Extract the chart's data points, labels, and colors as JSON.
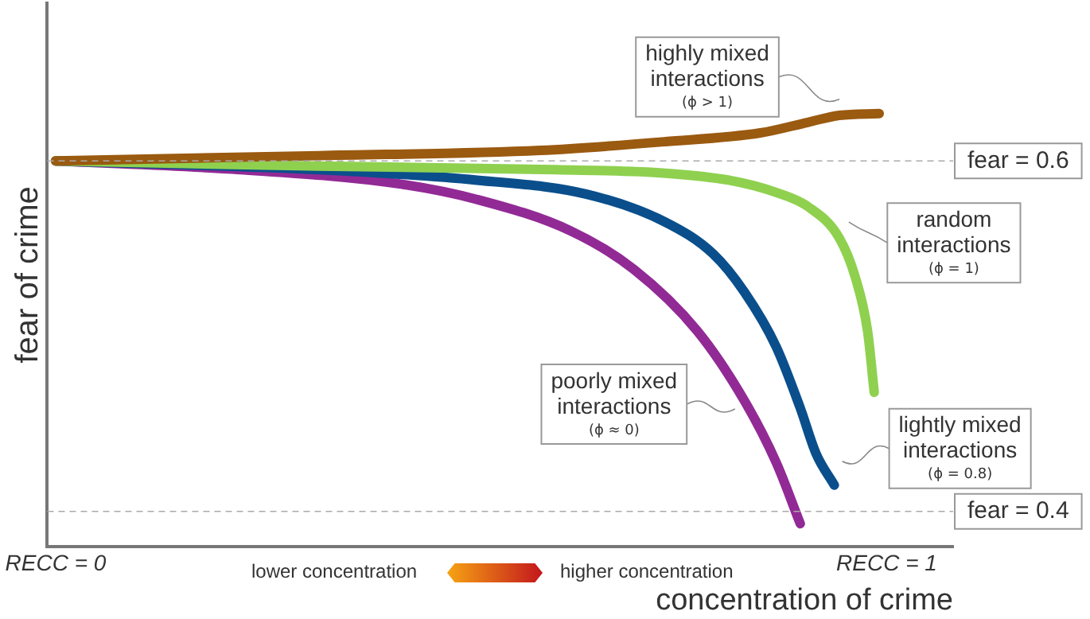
{
  "chart_data": {
    "type": "line",
    "xlabel": "concentration of crime",
    "ylabel": "fear of crime",
    "xlim": [
      -0.01,
      1.08
    ],
    "ylim": [
      0.38,
      0.69
    ],
    "xticks": [
      {
        "value": 0,
        "label": "RECC = 0"
      },
      {
        "value": 1,
        "label": "RECC = 1"
      }
    ],
    "tick_labels": "x",
    "grid": false,
    "legend": false,
    "marker": "none",
    "line_style": "solid",
    "series": [
      {
        "name": "highly mixed interactions (ϕ > 1)",
        "color": "#9a5a10",
        "x": [
          0,
          0.317,
          0.583,
          0.734,
          0.848,
          0.905,
          0.943,
          0.991
        ],
        "values": [
          0.6,
          0.603,
          0.606,
          0.611,
          0.616,
          0.622,
          0.626,
          0.627
        ]
      },
      {
        "name": "random interactions (ϕ = 1)",
        "color": "#8fd14f",
        "x": [
          0,
          0.317,
          0.602,
          0.734,
          0.81,
          0.867,
          0.905,
          0.943,
          0.962,
          0.977,
          0.985
        ],
        "values": [
          0.6,
          0.597,
          0.595,
          0.593,
          0.589,
          0.582,
          0.574,
          0.556,
          0.534,
          0.503,
          0.468
        ]
      },
      {
        "name": "lightly mixed interactions (ϕ = 0.8)",
        "color": "#0a4f8c",
        "x": [
          0,
          0.317,
          0.507,
          0.639,
          0.734,
          0.791,
          0.829,
          0.867,
          0.896,
          0.915,
          0.937
        ],
        "values": [
          0.6,
          0.595,
          0.589,
          0.581,
          0.565,
          0.547,
          0.525,
          0.494,
          0.459,
          0.433,
          0.415
        ]
      },
      {
        "name": "poorly mixed interactions (ϕ ≈ 0)",
        "color": "#922a96",
        "x": [
          0,
          0.222,
          0.412,
          0.507,
          0.62,
          0.696,
          0.772,
          0.829,
          0.867,
          0.896
        ],
        "values": [
          0.6,
          0.595,
          0.587,
          0.578,
          0.56,
          0.538,
          0.503,
          0.463,
          0.428,
          0.393
        ]
      }
    ],
    "ref_lines": [
      {
        "axis": "y",
        "value": 0.6,
        "label": "fear = 0.6",
        "color": "#aaaaaa",
        "line_style": "dashed"
      },
      {
        "axis": "y",
        "value": 0.4,
        "label": "fear = 0.4",
        "color": "#aaaaaa",
        "line_style": "dashed"
      }
    ],
    "annotations": [
      "lower concentration",
      "higher concentration"
    ]
  }
}
